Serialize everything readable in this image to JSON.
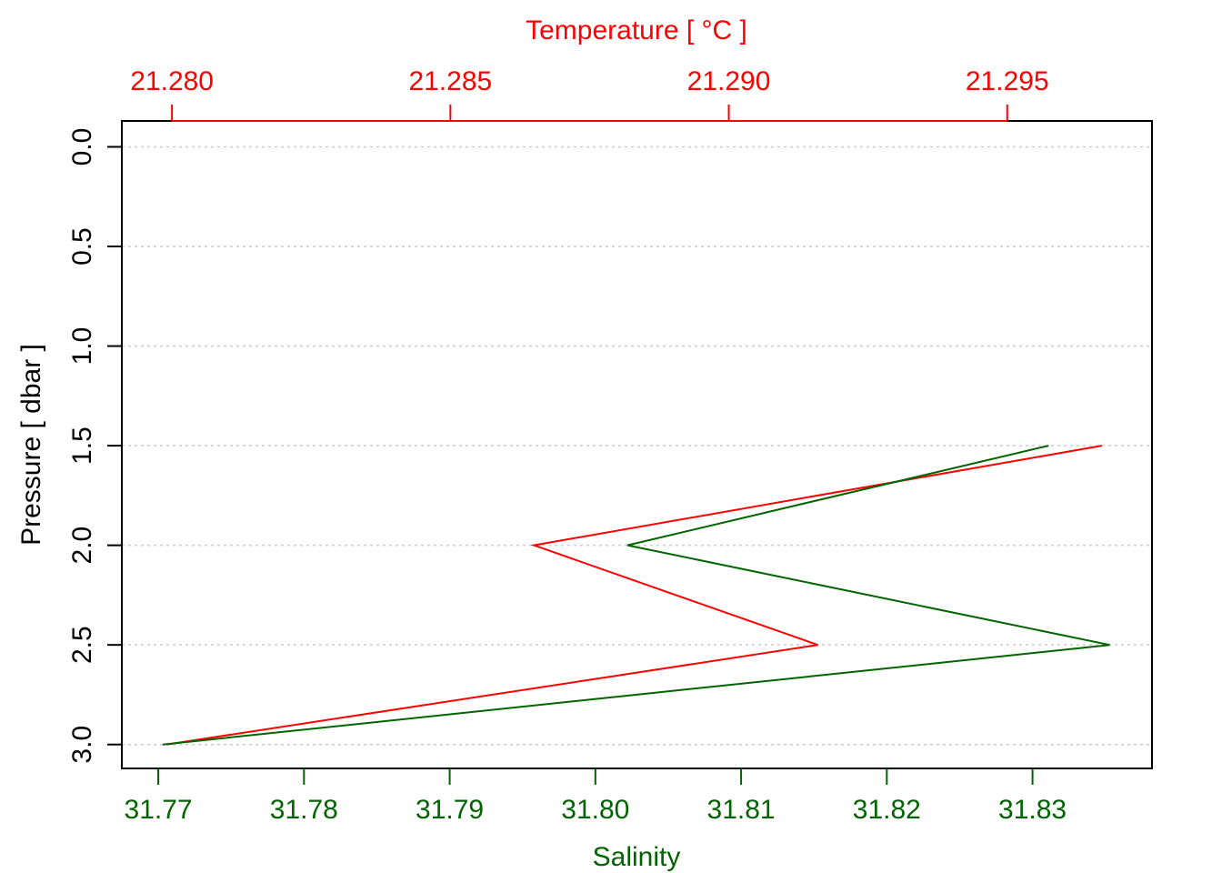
{
  "chart_data": {
    "type": "line",
    "title": "",
    "x_top": {
      "label": "Temperature [ °C ]",
      "color": "#ff0000",
      "range": [
        21.2791,
        21.2976
      ],
      "ticks": [
        "21.280",
        "21.285",
        "21.290",
        "21.295"
      ]
    },
    "x_bottom": {
      "label": "Salinity",
      "color": "#006400",
      "range": [
        31.7675,
        31.8382
      ],
      "ticks": [
        "31.77",
        "31.78",
        "31.79",
        "31.80",
        "31.81",
        "31.82",
        "31.83"
      ]
    },
    "y": {
      "label": "Pressure [ dbar ]",
      "range": [
        3.12,
        -0.13
      ],
      "ticks": [
        "0.0",
        "0.5",
        "1.0",
        "1.5",
        "2.0",
        "2.5",
        "3.0"
      ],
      "grid": true
    },
    "series": [
      {
        "axis": "top",
        "color": "#ff0000",
        "points": [
          {
            "x": 21.2967,
            "y": 1.5
          },
          {
            "x": 21.2865,
            "y": 2.0
          },
          {
            "x": 21.2916,
            "y": 2.5
          },
          {
            "x": 21.2799,
            "y": 3.0
          }
        ]
      },
      {
        "axis": "bottom",
        "color": "#006400",
        "points": [
          {
            "x": 31.8311,
            "y": 1.5
          },
          {
            "x": 31.8022,
            "y": 2.0
          },
          {
            "x": 31.8353,
            "y": 2.5
          },
          {
            "x": 31.7703,
            "y": 3.0
          }
        ]
      }
    ]
  }
}
